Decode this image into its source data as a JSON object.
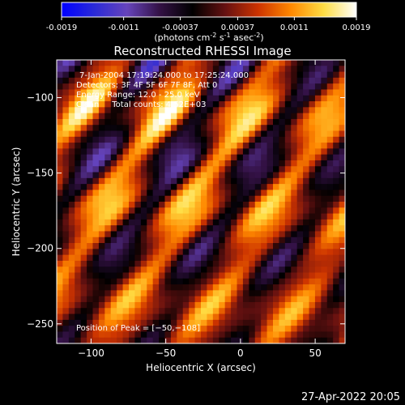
{
  "colorbar": {
    "ticks": [
      "-0.0019",
      "-0.0011",
      "-0.00037",
      "0.00037",
      "0.0011",
      "0.0019"
    ],
    "tick_values": [
      -0.0019,
      -0.0011,
      -0.00037,
      0.00037,
      0.0011,
      0.0019
    ],
    "range": [
      -0.0019,
      0.0019
    ],
    "label_base": "(photons cm",
    "label_exp1": "-2",
    "label_mid1": " s",
    "label_exp2": "-1",
    "label_mid2": " asec",
    "label_exp3": "-2",
    "label_end": ")",
    "colormap": [
      "#0000ff",
      "#2a2ad8",
      "#6644bb",
      "#331144",
      "#000000",
      "#661111",
      "#cc3300",
      "#ff8800",
      "#ffdd44",
      "#ffffff"
    ]
  },
  "chart_data": {
    "type": "heatmap",
    "title": "Reconstructed RHESSI Image",
    "xlabel": "Heliocentric X (arcsec)",
    "ylabel": "Heliocentric Y (arcsec)",
    "xlim": [
      -123,
      70
    ],
    "ylim": [
      -263,
      -75
    ],
    "xticks": [
      -100,
      -50,
      0,
      50
    ],
    "yticks": [
      -100,
      -150,
      -200,
      -250
    ],
    "xtick_labels": [
      "−100",
      "−50",
      "0",
      "50"
    ],
    "ytick_labels": [
      "−100",
      "−150",
      "−200",
      "−250"
    ],
    "stripe_angle_deg": -32,
    "peak": [
      -50,
      -108
    ],
    "annotations": {
      "time": "7-Jan-2004 17:19:24.000 to 17:25:24.000",
      "detectors": "Detectors: 3F 4F 5F 6F 7F 8F, Att 0",
      "energy": "Energy Range: 12.0 - 25.0 keV",
      "clean": "Clean     Total counts: 4.52E+03",
      "peak_text": "Position of Peak = [−50,−108]"
    }
  },
  "footer": {
    "date": "27-Apr-2022 20:05"
  }
}
